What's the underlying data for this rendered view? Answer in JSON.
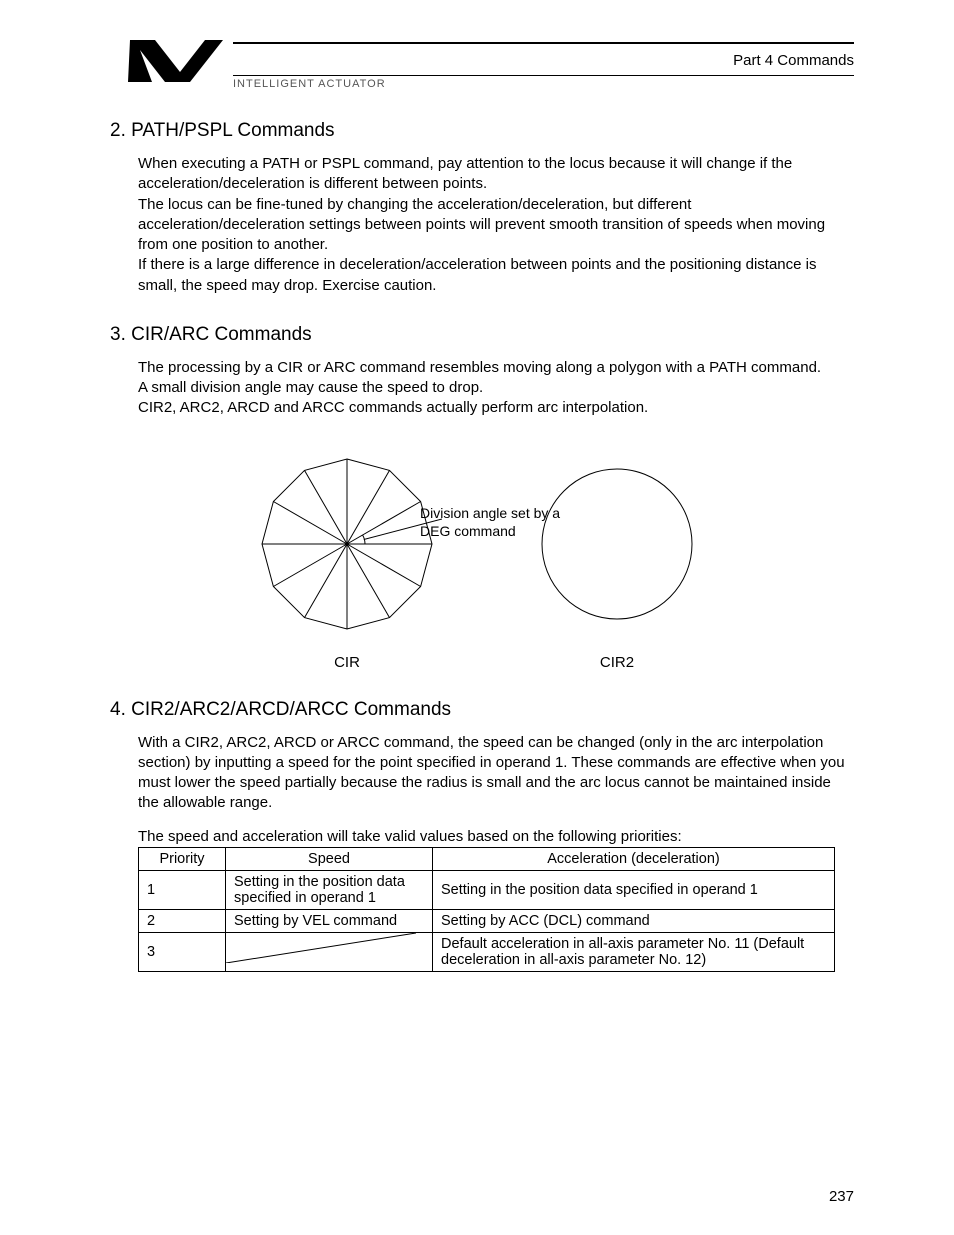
{
  "header": {
    "part_label": "Part 4   Commands",
    "brand": "INTELLIGENT ACTUATOR"
  },
  "section2": {
    "title": "2.  PATH/PSPL Commands",
    "p1": "When executing a PATH or PSPL command, pay attention to the locus because it will change if the acceleration/deceleration is different between points.",
    "p2": "The locus can be fine-tuned by changing the acceleration/deceleration, but different acceleration/deceleration settings between points will prevent smooth transition of speeds when moving from one position to another.",
    "p3": "If there is a large difference in deceleration/acceleration between points and the positioning distance is small, the speed may drop. Exercise caution."
  },
  "section3": {
    "title": "3.  CIR/ARC Commands",
    "p1": "The processing by a CIR or ARC command resembles moving along a polygon with a PATH command.",
    "p2": "A small division angle may cause the speed to drop.",
    "p3": "CIR2, ARC2, ARCD and ARCC commands actually perform arc interpolation.",
    "deg_label_l1": "Division angle set by a",
    "deg_label_l2": "DEG command",
    "caption_left": "CIR",
    "caption_right": "CIR2"
  },
  "section4": {
    "title": "4.  CIR2/ARC2/ARCD/ARCC Commands",
    "p1": "With a CIR2, ARC2, ARCD or ARCC command, the speed can be changed (only in the arc interpolation section) by inputting a speed for the point specified in operand 1. These commands are effective when you must lower the speed partially because the radius is small and the arc locus cannot be maintained inside the allowable range.",
    "table_intro": "The speed and acceleration will take valid values based on the following priorities:"
  },
  "table": {
    "headers": {
      "priority": "Priority",
      "speed": "Speed",
      "accel": "Acceleration (deceleration)"
    },
    "rows": [
      {
        "priority": "1",
        "speed": "Setting in the position data specified in operand 1",
        "accel": "Setting in the position data specified in operand 1"
      },
      {
        "priority": "2",
        "speed": "Setting by VEL command",
        "accel": "Setting by ACC (DCL) command"
      },
      {
        "priority": "3",
        "speed": "",
        "accel": "Default acceleration in all-axis parameter No. 11 (Default deceleration in all-axis parameter No. 12)"
      }
    ]
  },
  "diagram": {
    "polygon_sides": 12,
    "polygon_radius": 85,
    "circle_radius": 75,
    "stroke": "#000000",
    "stroke_width": 1
  },
  "page_number": "237"
}
